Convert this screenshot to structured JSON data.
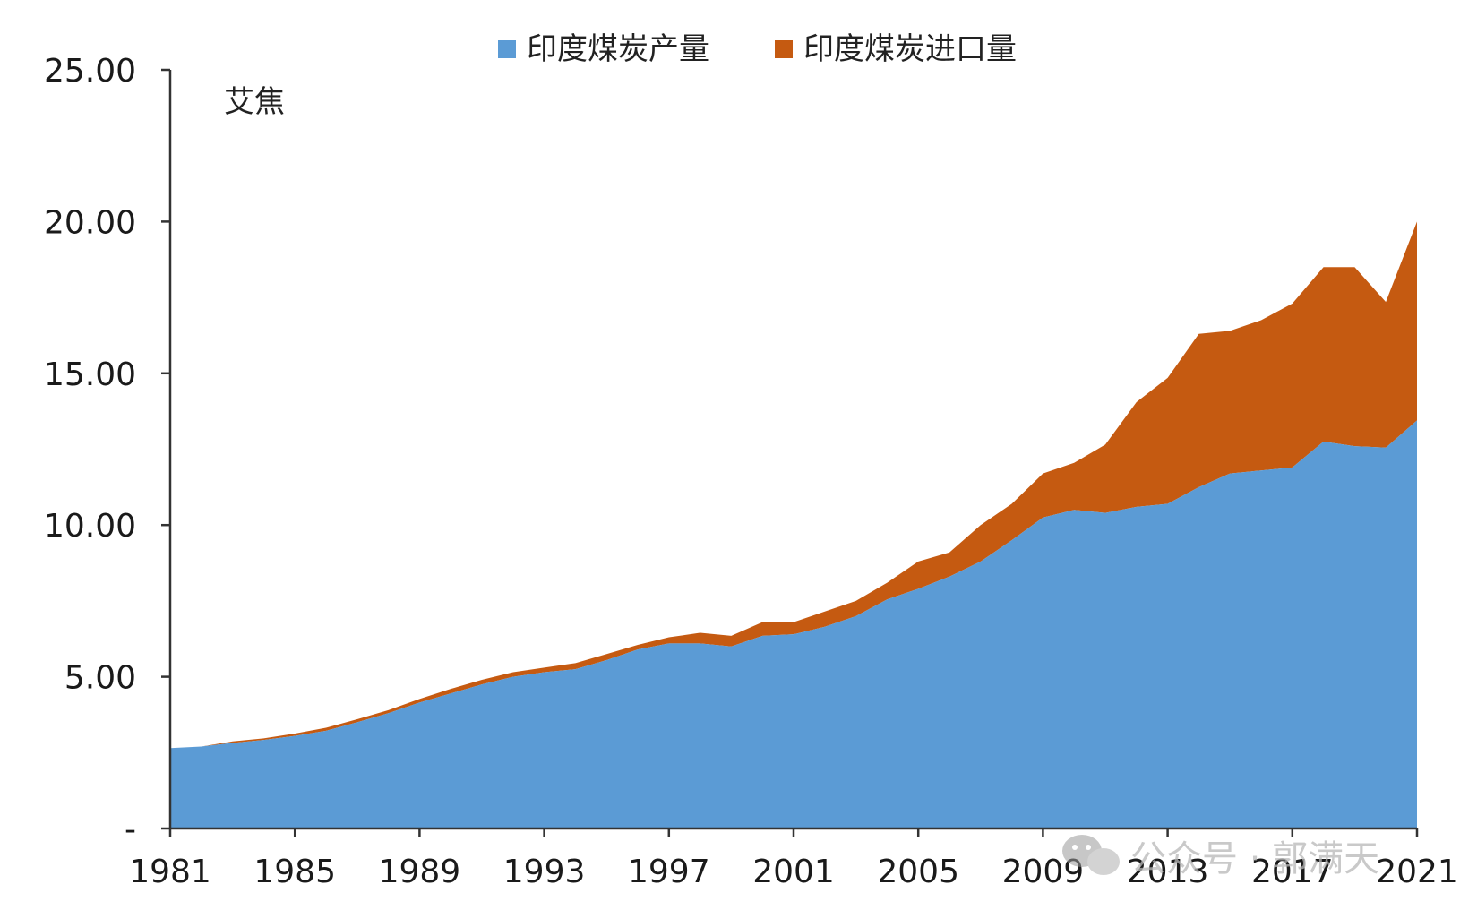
{
  "chart_data": {
    "type": "area",
    "stacked": true,
    "unit_label": "艾焦",
    "legend_position": "top-center",
    "grid": false,
    "ylim": [
      0,
      25
    ],
    "y_ticks": [
      "-",
      "5.00",
      "10.00",
      "15.00",
      "20.00",
      "25.00"
    ],
    "x_ticks": [
      "1981",
      "1985",
      "1989",
      "1993",
      "1997",
      "2001",
      "2005",
      "2009",
      "2013",
      "2017",
      "2021"
    ],
    "x": [
      1981,
      1982,
      1983,
      1984,
      1985,
      1986,
      1987,
      1988,
      1989,
      1990,
      1991,
      1992,
      1993,
      1994,
      1995,
      1996,
      1997,
      1998,
      1999,
      2000,
      2001,
      2002,
      2003,
      2004,
      2005,
      2006,
      2007,
      2008,
      2009,
      2010,
      2011,
      2012,
      2013,
      2014,
      2015,
      2016,
      2017,
      2018,
      2019,
      2020,
      2021
    ],
    "series": [
      {
        "name": "印度煤炭产量",
        "color": "#5B9BD5",
        "values": [
          2.65,
          2.7,
          2.82,
          2.92,
          3.05,
          3.22,
          3.5,
          3.8,
          4.15,
          4.45,
          4.75,
          5.0,
          5.15,
          5.25,
          5.55,
          5.9,
          6.1,
          6.1,
          6.0,
          6.35,
          6.4,
          6.65,
          7.0,
          7.55,
          7.9,
          8.3,
          8.8,
          9.5,
          10.25,
          10.5,
          10.4,
          10.6,
          10.7,
          11.25,
          11.7,
          11.8,
          11.9,
          12.75,
          12.6,
          12.55,
          13.45
        ]
      },
      {
        "name": "印度煤炭进口量",
        "color": "#C55A11",
        "values": [
          0.0,
          0.0,
          0.05,
          0.05,
          0.08,
          0.1,
          0.1,
          0.1,
          0.12,
          0.15,
          0.15,
          0.15,
          0.15,
          0.2,
          0.2,
          0.15,
          0.2,
          0.35,
          0.35,
          0.45,
          0.4,
          0.5,
          0.5,
          0.55,
          0.9,
          0.8,
          1.2,
          1.2,
          1.45,
          1.55,
          2.25,
          3.45,
          4.15,
          5.05,
          4.7,
          4.95,
          5.4,
          5.75,
          5.9,
          4.8,
          6.55
        ]
      }
    ]
  },
  "watermark": {
    "icon": "wechat-icon",
    "text": "公众号 · 郭满天"
  }
}
